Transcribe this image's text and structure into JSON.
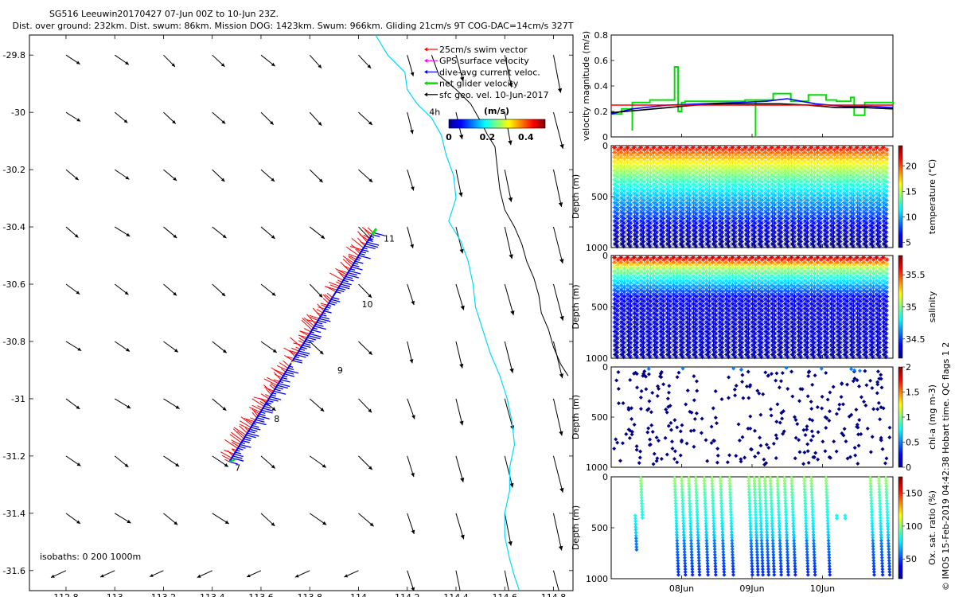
{
  "header": {
    "title": "SG516 Leeuwin20170427 07-Jun 00Z to 10-Jun 23Z.",
    "subtitle": "Dist. over ground: 232km. Dist. swum: 86km. Mission DOG: 1423km. Swum: 966km. Gliding 21cm/s 9T COG-DAC=14cm/s 327T"
  },
  "credit": "© IMOS 15-Feb-2019 04:42:38 Hobart time. QC flags 1  2",
  "colors": {
    "swim_vector": "#ff0000",
    "gps_surface": "#ff00ff",
    "dive_avg": "#0000ff",
    "net_glider": "#00e000",
    "sfc_geo": "#000000",
    "isobath": "#00d8ff",
    "isobath_1000": "#000000"
  },
  "chart_data": [
    {
      "id": "map",
      "type": "quiver",
      "title": "",
      "xlabel": "",
      "ylabel": "",
      "xlim": [
        112.65,
        114.88
      ],
      "ylim": [
        -31.67,
        -29.73
      ],
      "xticks": [
        112.8,
        113,
        113.2,
        113.4,
        113.6,
        113.8,
        114,
        114.2,
        114.4,
        114.6,
        114.8
      ],
      "xtick_labels": [
        "112.8",
        "113",
        "113.2",
        "113.4",
        "113.6",
        "113.8",
        "114",
        "114.2",
        "114.4",
        "114.6",
        "114.8"
      ],
      "yticks": [
        -29.8,
        -30,
        -30.2,
        -30.4,
        -30.6,
        -30.8,
        -31,
        -31.2,
        -31.4,
        -31.6
      ],
      "ytick_labels": [
        "-29.8",
        "-30",
        "-30.2",
        "-30.4",
        "-30.6",
        "-30.8",
        "-31",
        "-31.2",
        "-31.4",
        "-31.6"
      ],
      "legend": {
        "position": "top-right",
        "entries": [
          {
            "label": "25cm/s swim vector",
            "color": "#ff0000"
          },
          {
            "label": "GPS surface velocity",
            "color": "#ff00ff"
          },
          {
            "label": "dive-avg current veloc.",
            "color": "#0000ff"
          },
          {
            "label": "net glider velocity",
            "color": "#00e000"
          },
          {
            "label": "sfc geo. vel. 10-Jun-2017",
            "color": "#000000"
          }
        ]
      },
      "colorbar": {
        "label": "(m/s)",
        "ticks": [
          "0",
          "0.2",
          "0.4"
        ],
        "range": [
          0,
          0.5
        ]
      },
      "isobaths_label": "isobaths: 0   200  1000m",
      "arrow_grid": {
        "lons": [
          112.8,
          113.0,
          113.2,
          113.4,
          113.6,
          113.8,
          114.0,
          114.2,
          114.4,
          114.6,
          114.8
        ],
        "lats": [
          -29.8,
          -30.0,
          -30.2,
          -30.4,
          -30.6,
          -30.8,
          -31.0,
          -31.2,
          -31.4,
          -31.6
        ]
      },
      "track": {
        "start": [
          113.47,
          -31.22
        ],
        "end": [
          114.06,
          -30.42
        ],
        "breaks": [
          0.43,
          0.73
        ]
      },
      "day_labels": [
        {
          "text": "7",
          "lon": 113.48,
          "lat": -31.24
        },
        {
          "text": "8",
          "lon": 113.64,
          "lat": -31.07
        },
        {
          "text": "9",
          "lon": 113.9,
          "lat": -30.9
        },
        {
          "text": "10",
          "lon": 114.0,
          "lat": -30.67
        },
        {
          "text": "11",
          "lon": 114.09,
          "lat": -30.44
        }
      ],
      "time_label": {
        "text": "4h",
        "lon": 114.29,
        "lat": -30.01
      },
      "isobath_0": [
        [
          114.07,
          -29.73
        ],
        [
          114.12,
          -29.8
        ],
        [
          114.19,
          -29.86
        ],
        [
          114.2,
          -29.92
        ],
        [
          114.24,
          -29.97
        ],
        [
          114.3,
          -30.02
        ],
        [
          114.34,
          -30.08
        ],
        [
          114.36,
          -30.15
        ],
        [
          114.39,
          -30.22
        ],
        [
          114.4,
          -30.3
        ],
        [
          114.37,
          -30.38
        ],
        [
          114.42,
          -30.45
        ],
        [
          114.45,
          -30.52
        ],
        [
          114.47,
          -30.6
        ],
        [
          114.48,
          -30.68
        ],
        [
          114.51,
          -30.76
        ],
        [
          114.54,
          -30.84
        ],
        [
          114.58,
          -30.92
        ],
        [
          114.61,
          -31.0
        ],
        [
          114.63,
          -31.08
        ],
        [
          114.64,
          -31.16
        ],
        [
          114.62,
          -31.24
        ],
        [
          114.62,
          -31.32
        ],
        [
          114.6,
          -31.4
        ],
        [
          114.6,
          -31.48
        ],
        [
          114.62,
          -31.56
        ],
        [
          114.64,
          -31.62
        ],
        [
          114.66,
          -31.67
        ]
      ],
      "isobath_1000": [
        [
          114.3,
          -29.8
        ],
        [
          114.33,
          -29.87
        ],
        [
          114.4,
          -29.92
        ],
        [
          114.46,
          -29.97
        ],
        [
          114.5,
          -30.03
        ],
        [
          114.53,
          -30.08
        ],
        [
          114.56,
          -30.12
        ],
        [
          114.57,
          -30.2
        ],
        [
          114.58,
          -30.27
        ],
        [
          114.6,
          -30.34
        ],
        [
          114.64,
          -30.4
        ],
        [
          114.67,
          -30.46
        ],
        [
          114.69,
          -30.52
        ],
        [
          114.72,
          -30.58
        ],
        [
          114.74,
          -30.64
        ],
        [
          114.75,
          -30.7
        ],
        [
          114.78,
          -30.76
        ],
        [
          114.8,
          -30.82
        ],
        [
          114.83,
          -30.88
        ],
        [
          114.86,
          -30.92
        ]
      ]
    },
    {
      "id": "velocity",
      "type": "line",
      "title": "",
      "xlabel": "",
      "ylabel": "velocity magnitude (m/s)",
      "xlim": [
        0,
        4
      ],
      "ylim": [
        0,
        0.8
      ],
      "yticks": [
        0,
        0.2,
        0.4,
        0.6,
        0.8
      ],
      "ytick_labels": [
        "0",
        "0.2",
        "0.4",
        "0.6",
        "0.8"
      ],
      "series": [
        {
          "name": "net glider velocity",
          "color": "#00e000",
          "step": true,
          "x": [
            0,
            0.15,
            0.3,
            0.3,
            0.55,
            0.8,
            0.9,
            0.95,
            1.0,
            1.05,
            1.75,
            1.9,
            2.05,
            2.05,
            2.3,
            2.55,
            2.8,
            3.05,
            3.2,
            3.4,
            3.45,
            3.6,
            3.8,
            4.0
          ],
          "y": [
            0.18,
            0.22,
            0.05,
            0.27,
            0.29,
            0.29,
            0.55,
            0.2,
            0.27,
            0.28,
            0.28,
            0.29,
            0.0,
            0.29,
            0.34,
            0.28,
            0.33,
            0.29,
            0.28,
            0.31,
            0.17,
            0.27,
            0.27,
            0.25
          ]
        },
        {
          "name": "dive-avg current veloc.",
          "color": "#0000ff",
          "x": [
            0,
            0.3,
            0.8,
            1.3,
            1.8,
            2.2,
            2.5,
            2.9,
            3.3,
            3.7,
            4.0
          ],
          "y": [
            0.18,
            0.22,
            0.25,
            0.26,
            0.27,
            0.28,
            0.3,
            0.26,
            0.24,
            0.24,
            0.23
          ]
        },
        {
          "name": "sfc geo. velocity",
          "color": "#000000",
          "x": [
            0,
            0.4,
            0.8,
            1.2,
            1.6,
            2.0,
            2.4,
            2.8,
            3.2,
            3.6,
            4.0
          ],
          "y": [
            0.19,
            0.21,
            0.23,
            0.25,
            0.26,
            0.26,
            0.26,
            0.25,
            0.23,
            0.23,
            0.22
          ]
        },
        {
          "name": "swim vector",
          "color": "#ff0000",
          "x": [
            0,
            4.0
          ],
          "y": [
            0.25,
            0.25
          ]
        }
      ]
    },
    {
      "id": "temperature",
      "type": "scatter",
      "ylabel": "Depth (m)",
      "ylim": [
        0,
        1000
      ],
      "yticks": [
        0,
        500,
        1000
      ],
      "ytick_labels": [
        "0",
        "500",
        "1000"
      ],
      "profiles": 42,
      "min_depth": 20,
      "max_depth": 980,
      "colorbar": {
        "label": "temperature (°C)",
        "range": [
          4,
          24
        ],
        "ticks": [
          5,
          10,
          15,
          20
        ],
        "tick_labels": [
          "5",
          "10",
          "15",
          "20"
        ]
      }
    },
    {
      "id": "salinity",
      "type": "scatter",
      "ylabel": "Depth (m)",
      "ylim": [
        0,
        1000
      ],
      "yticks": [
        0,
        500,
        1000
      ],
      "ytick_labels": [
        "0",
        "500",
        "1000"
      ],
      "profiles": 42,
      "min_depth": 20,
      "max_depth": 980,
      "colorbar": {
        "label": "salinity",
        "range": [
          34.2,
          35.8
        ],
        "ticks": [
          34.5,
          35,
          35.5
        ],
        "tick_labels": [
          "34.5",
          "35",
          "35.5"
        ]
      }
    },
    {
      "id": "chla",
      "type": "scatter",
      "ylabel": "Depth (m)",
      "ylim": [
        0,
        1000
      ],
      "yticks": [
        0,
        500,
        1000
      ],
      "ytick_labels": [
        "0",
        "500",
        "1000"
      ],
      "points": 320,
      "colorbar": {
        "label": "chl-a (mg m-3)",
        "range": [
          0,
          2
        ],
        "ticks": [
          0,
          0.5,
          1,
          1.5,
          2
        ],
        "tick_labels": [
          "0",
          "0.5",
          "1",
          "1.5",
          "2"
        ]
      }
    },
    {
      "id": "oxygen",
      "type": "scatter",
      "ylabel": "Depth (m)",
      "xlabel": "",
      "ylim": [
        0,
        1000
      ],
      "yticks": [
        0,
        500,
        1000
      ],
      "ytick_labels": [
        "0",
        "500",
        "1000"
      ],
      "xticks": [
        1,
        2,
        3
      ],
      "xtick_labels": [
        "08Jun",
        "09Jun",
        "10Jun"
      ],
      "xlim": [
        0,
        4
      ],
      "profiles": 26,
      "colorbar": {
        "label": "Ox. sat. ratio (%)",
        "range": [
          20,
          175
        ],
        "ticks": [
          50,
          100,
          150
        ],
        "tick_labels": [
          "50",
          "100",
          "150"
        ]
      }
    }
  ]
}
